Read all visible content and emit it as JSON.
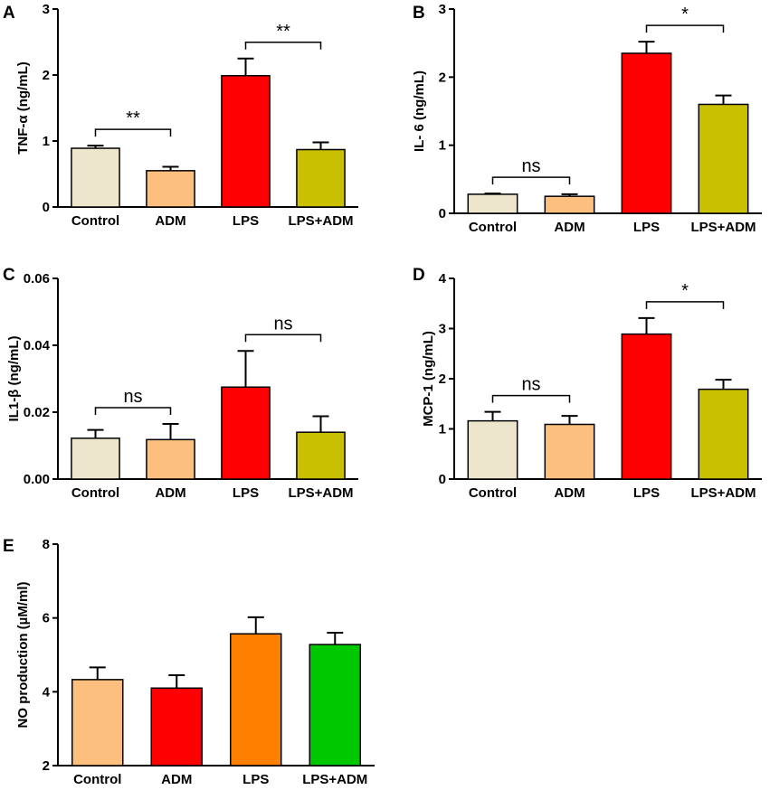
{
  "chart_data": [
    {
      "panel": "A",
      "type": "bar",
      "ylabel": "TNF-α (ng/mL)",
      "ylim": [
        0,
        3
      ],
      "yticks": [
        0,
        1,
        2,
        3
      ],
      "categories": [
        "Control",
        "ADM",
        "LPS",
        "LPS+ADM"
      ],
      "values": [
        0.89,
        0.55,
        1.99,
        0.87
      ],
      "errors": [
        0.04,
        0.06,
        0.26,
        0.11
      ],
      "colors": [
        "#EDE6CC",
        "#FCBF7E",
        "#FF0000",
        "#C8C000"
      ],
      "annotations": [
        {
          "from": 0,
          "to": 1,
          "label": "**"
        },
        {
          "from": 2,
          "to": 3,
          "label": "**"
        }
      ]
    },
    {
      "panel": "B",
      "type": "bar",
      "ylabel": "IL- 6 (ng/mL)",
      "ylim": [
        0,
        3
      ],
      "yticks": [
        0,
        1,
        2,
        3
      ],
      "categories": [
        "Control",
        "ADM",
        "LPS",
        "LPS+ADM"
      ],
      "values": [
        0.28,
        0.25,
        2.35,
        1.6
      ],
      "errors": [
        0.01,
        0.03,
        0.17,
        0.13
      ],
      "colors": [
        "#EDE6CC",
        "#FCBF7E",
        "#FF0000",
        "#C8C000"
      ],
      "annotations": [
        {
          "from": 0,
          "to": 1,
          "label": "ns"
        },
        {
          "from": 2,
          "to": 3,
          "label": "*"
        }
      ]
    },
    {
      "panel": "C",
      "type": "bar",
      "ylabel": "IL1-β (ng/mL)",
      "ylim": [
        0,
        0.06
      ],
      "yticks": [
        0.0,
        0.02,
        0.04,
        0.06
      ],
      "ytick_labels": [
        "0.00",
        "0.02",
        "0.04",
        "0.06"
      ],
      "categories": [
        "Control",
        "ADM",
        "LPS",
        "LPS+ADM"
      ],
      "values": [
        0.0122,
        0.0118,
        0.0275,
        0.014
      ],
      "errors": [
        0.0025,
        0.0047,
        0.0108,
        0.0048
      ],
      "colors": [
        "#EDE6CC",
        "#FCBF7E",
        "#FF0000",
        "#C8C000"
      ],
      "annotations": [
        {
          "from": 0,
          "to": 1,
          "label": "ns"
        },
        {
          "from": 2,
          "to": 3,
          "label": "ns"
        }
      ]
    },
    {
      "panel": "D",
      "type": "bar",
      "ylabel": "MCP-1 (ng/mL)",
      "ylim": [
        0,
        4
      ],
      "yticks": [
        0,
        1,
        2,
        3,
        4
      ],
      "categories": [
        "Control",
        "ADM",
        "LPS",
        "LPS+ADM"
      ],
      "values": [
        1.16,
        1.09,
        2.89,
        1.79
      ],
      "errors": [
        0.18,
        0.17,
        0.32,
        0.19
      ],
      "colors": [
        "#EDE6CC",
        "#FCBF7E",
        "#FF0000",
        "#C8C000"
      ],
      "annotations": [
        {
          "from": 0,
          "to": 1,
          "label": "ns"
        },
        {
          "from": 2,
          "to": 3,
          "label": "*"
        }
      ]
    },
    {
      "panel": "E",
      "type": "bar",
      "ylabel": "NO production (µM/ml)",
      "ylim": [
        2,
        8
      ],
      "yticks": [
        2,
        4,
        6,
        8
      ],
      "categories": [
        "Control",
        "ADM",
        "LPS",
        "LPS+ADM"
      ],
      "values": [
        4.33,
        4.1,
        5.57,
        5.28
      ],
      "errors": [
        0.33,
        0.35,
        0.45,
        0.32
      ],
      "colors": [
        "#FCBF7E",
        "#FF0000",
        "#FF8000",
        "#00C800"
      ],
      "annotations": []
    }
  ]
}
